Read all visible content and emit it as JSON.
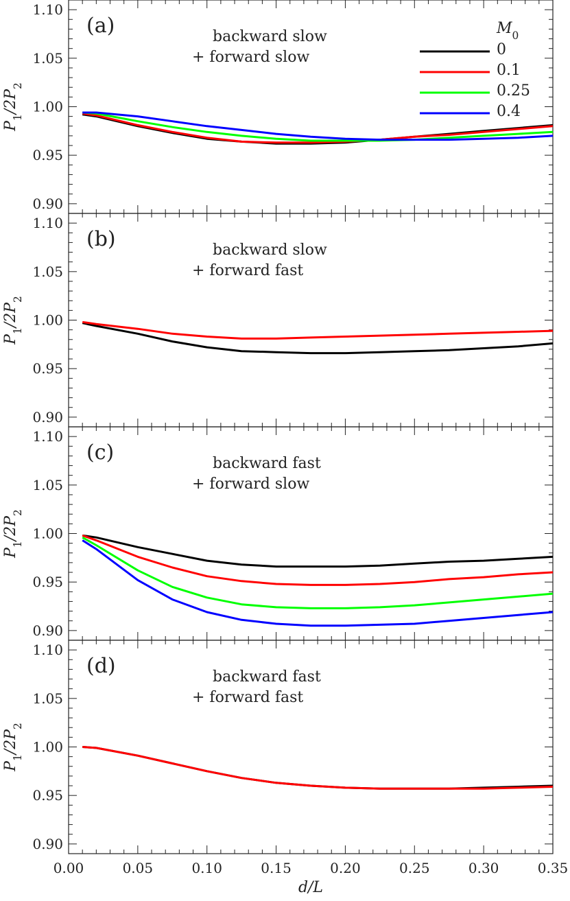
{
  "chart_data": [
    {
      "type": "line",
      "panel_label": "(a)",
      "annotation": [
        "backward slow",
        "+ forward slow"
      ],
      "ylabel": "P₁/2P₂",
      "xlabel": "",
      "xlim": [
        0.0,
        0.35
      ],
      "ylim": [
        0.89,
        1.11
      ],
      "yticks": [
        "1.10",
        "1.05",
        "1.00",
        "0.95",
        "0.90"
      ],
      "x": [
        0.01,
        0.02,
        0.05,
        0.075,
        0.1,
        0.125,
        0.15,
        0.175,
        0.2,
        0.225,
        0.25,
        0.275,
        0.3,
        0.325,
        0.35
      ],
      "legend": {
        "title": "M₀",
        "placement": "top-right",
        "entries": [
          "0",
          "0.1",
          "0.25",
          "0.4"
        ]
      },
      "series": [
        {
          "name": "0",
          "color": "#000000",
          "values": [
            0.992,
            0.99,
            0.98,
            0.973,
            0.967,
            0.964,
            0.962,
            0.962,
            0.963,
            0.966,
            0.969,
            0.972,
            0.975,
            0.978,
            0.981
          ]
        },
        {
          "name": "0.1",
          "color": "#ff0000",
          "values": [
            0.993,
            0.991,
            0.981,
            0.974,
            0.968,
            0.964,
            0.963,
            0.963,
            0.964,
            0.966,
            0.969,
            0.971,
            0.974,
            0.977,
            0.98
          ]
        },
        {
          "name": "0.25",
          "color": "#00ff00",
          "values": [
            0.994,
            0.993,
            0.985,
            0.979,
            0.974,
            0.97,
            0.967,
            0.965,
            0.965,
            0.965,
            0.966,
            0.968,
            0.97,
            0.972,
            0.974
          ]
        },
        {
          "name": "0.4",
          "color": "#0000ff",
          "values": [
            0.994,
            0.994,
            0.99,
            0.985,
            0.98,
            0.976,
            0.972,
            0.969,
            0.967,
            0.966,
            0.966,
            0.966,
            0.967,
            0.968,
            0.97
          ]
        }
      ]
    },
    {
      "type": "line",
      "panel_label": "(b)",
      "annotation": [
        "backward slow",
        "+ forward fast"
      ],
      "ylabel": "P₁/2P₂",
      "xlabel": "",
      "xlim": [
        0.0,
        0.35
      ],
      "ylim": [
        0.89,
        1.11
      ],
      "yticks": [
        "1.10",
        "1.05",
        "1.00",
        "0.95",
        "0.90"
      ],
      "x": [
        0.01,
        0.02,
        0.05,
        0.075,
        0.1,
        0.125,
        0.15,
        0.175,
        0.2,
        0.225,
        0.25,
        0.275,
        0.3,
        0.325,
        0.35
      ],
      "series": [
        {
          "name": "0",
          "color": "#000000",
          "values": [
            0.997,
            0.994,
            0.986,
            0.978,
            0.972,
            0.968,
            0.967,
            0.966,
            0.966,
            0.967,
            0.968,
            0.969,
            0.971,
            0.973,
            0.976
          ]
        },
        {
          "name": "0.1",
          "color": "#ff0000",
          "values": [
            0.998,
            0.996,
            0.991,
            0.986,
            0.983,
            0.981,
            0.981,
            0.982,
            0.983,
            0.984,
            0.985,
            0.986,
            0.987,
            0.988,
            0.989
          ]
        }
      ]
    },
    {
      "type": "line",
      "panel_label": "(c)",
      "annotation": [
        "backward fast",
        "+ forward slow"
      ],
      "ylabel": "P₁/2P₂",
      "xlabel": "",
      "xlim": [
        0.0,
        0.35
      ],
      "ylim": [
        0.89,
        1.11
      ],
      "yticks": [
        "1.10",
        "1.05",
        "1.00",
        "0.95",
        "0.90"
      ],
      "x": [
        0.01,
        0.02,
        0.05,
        0.075,
        0.1,
        0.125,
        0.15,
        0.175,
        0.2,
        0.225,
        0.25,
        0.275,
        0.3,
        0.325,
        0.35
      ],
      "series": [
        {
          "name": "0",
          "color": "#000000",
          "values": [
            0.998,
            0.996,
            0.986,
            0.979,
            0.972,
            0.968,
            0.966,
            0.966,
            0.966,
            0.967,
            0.969,
            0.971,
            0.972,
            0.974,
            0.976
          ]
        },
        {
          "name": "0.1",
          "color": "#ff0000",
          "values": [
            0.998,
            0.993,
            0.976,
            0.965,
            0.956,
            0.951,
            0.948,
            0.947,
            0.947,
            0.948,
            0.95,
            0.953,
            0.955,
            0.958,
            0.96
          ]
        },
        {
          "name": "0.25",
          "color": "#00ff00",
          "values": [
            0.996,
            0.988,
            0.962,
            0.945,
            0.934,
            0.927,
            0.924,
            0.923,
            0.923,
            0.924,
            0.926,
            0.929,
            0.932,
            0.935,
            0.938
          ]
        },
        {
          "name": "0.4",
          "color": "#0000ff",
          "values": [
            0.993,
            0.984,
            0.952,
            0.932,
            0.919,
            0.911,
            0.907,
            0.905,
            0.905,
            0.906,
            0.907,
            0.91,
            0.913,
            0.916,
            0.919
          ]
        }
      ]
    },
    {
      "type": "line",
      "panel_label": "(d)",
      "annotation": [
        "backward fast",
        "+ forward fast"
      ],
      "ylabel": "P₁/2P₂",
      "xlabel": "d/L",
      "xlim": [
        0.0,
        0.35
      ],
      "ylim": [
        0.89,
        1.11
      ],
      "yticks": [
        "1.10",
        "1.05",
        "1.00",
        "0.95",
        "0.90"
      ],
      "xticks": [
        "0.00",
        "0.05",
        "0.10",
        "0.15",
        "0.20",
        "0.25",
        "0.30",
        "0.35"
      ],
      "x": [
        0.01,
        0.02,
        0.05,
        0.075,
        0.1,
        0.125,
        0.15,
        0.175,
        0.2,
        0.225,
        0.25,
        0.275,
        0.3,
        0.325,
        0.35
      ],
      "series": [
        {
          "name": "0",
          "color": "#000000",
          "values": [
            1.0,
            0.999,
            0.991,
            0.983,
            0.975,
            0.968,
            0.963,
            0.96,
            0.958,
            0.957,
            0.957,
            0.957,
            0.958,
            0.959,
            0.96
          ]
        },
        {
          "name": "0.1",
          "color": "#ff0000",
          "values": [
            1.0,
            0.999,
            0.991,
            0.983,
            0.975,
            0.968,
            0.963,
            0.96,
            0.958,
            0.957,
            0.957,
            0.957,
            0.957,
            0.958,
            0.959
          ]
        }
      ]
    }
  ]
}
